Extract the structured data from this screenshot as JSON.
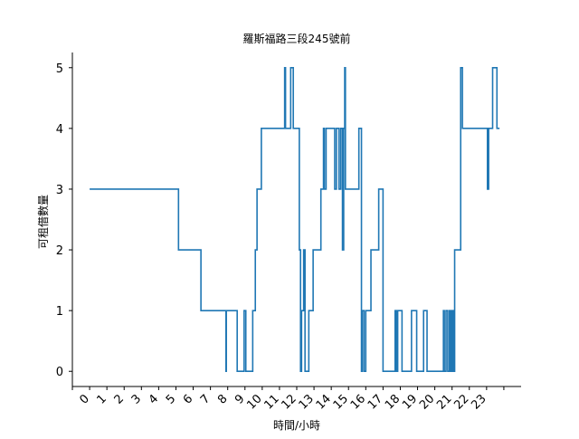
{
  "chart_data": {
    "type": "line",
    "title": "羅斯福路三段245號前",
    "xlabel": "時間/小時",
    "ylabel": "可租借數量",
    "xlim": [
      -1,
      25
    ],
    "ylim": [
      -0.25,
      5.25
    ],
    "x_ticks": [
      0,
      1,
      2,
      3,
      4,
      5,
      6,
      7,
      8,
      9,
      10,
      11,
      12,
      13,
      14,
      15,
      16,
      17,
      18,
      19,
      20,
      21,
      22,
      23
    ],
    "x_tick_labels": [
      "0",
      "1",
      "2",
      "3",
      "4",
      "5",
      "6",
      "7",
      "8",
      "9",
      "10",
      "11",
      "12",
      "13",
      "14",
      "15",
      "16",
      "17",
      "18",
      "19",
      "20",
      "21",
      "22",
      "23"
    ],
    "x_ticks_unlabeled": [
      -1,
      24
    ],
    "y_ticks": [
      0,
      1,
      2,
      3,
      4,
      5
    ],
    "y_tick_labels": [
      "0",
      "1",
      "2",
      "3",
      "4",
      "5"
    ],
    "grid": false,
    "series": [
      {
        "color": "#1f77b4",
        "step": "post",
        "points": [
          [
            0.0,
            3
          ],
          [
            5.15,
            3
          ],
          [
            5.15,
            2
          ],
          [
            6.45,
            2
          ],
          [
            6.45,
            1
          ],
          [
            7.9,
            1
          ],
          [
            7.9,
            0
          ],
          [
            7.92,
            0
          ],
          [
            7.92,
            1
          ],
          [
            8.55,
            1
          ],
          [
            8.55,
            0
          ],
          [
            8.95,
            0
          ],
          [
            8.95,
            1
          ],
          [
            9.05,
            1
          ],
          [
            9.05,
            0
          ],
          [
            9.45,
            0
          ],
          [
            9.45,
            1
          ],
          [
            9.6,
            1
          ],
          [
            9.6,
            2
          ],
          [
            9.7,
            2
          ],
          [
            9.7,
            3
          ],
          [
            9.95,
            3
          ],
          [
            9.95,
            4
          ],
          [
            11.3,
            4
          ],
          [
            11.3,
            5
          ],
          [
            11.35,
            5
          ],
          [
            11.35,
            4
          ],
          [
            11.65,
            4
          ],
          [
            11.65,
            5
          ],
          [
            11.8,
            5
          ],
          [
            11.8,
            4
          ],
          [
            12.15,
            4
          ],
          [
            12.15,
            2
          ],
          [
            12.22,
            2
          ],
          [
            12.22,
            0
          ],
          [
            12.28,
            0
          ],
          [
            12.28,
            1
          ],
          [
            12.4,
            1
          ],
          [
            12.4,
            2
          ],
          [
            12.48,
            2
          ],
          [
            12.48,
            0
          ],
          [
            12.7,
            0
          ],
          [
            12.7,
            1
          ],
          [
            12.95,
            1
          ],
          [
            12.95,
            2
          ],
          [
            13.4,
            2
          ],
          [
            13.4,
            3
          ],
          [
            13.55,
            3
          ],
          [
            13.55,
            4
          ],
          [
            13.6,
            4
          ],
          [
            13.6,
            3
          ],
          [
            13.7,
            3
          ],
          [
            13.7,
            4
          ],
          [
            14.2,
            4
          ],
          [
            14.2,
            3
          ],
          [
            14.3,
            3
          ],
          [
            14.3,
            4
          ],
          [
            14.45,
            4
          ],
          [
            14.45,
            3
          ],
          [
            14.55,
            3
          ],
          [
            14.55,
            4
          ],
          [
            14.65,
            4
          ],
          [
            14.65,
            2
          ],
          [
            14.72,
            2
          ],
          [
            14.72,
            4
          ],
          [
            14.78,
            4
          ],
          [
            14.78,
            5
          ],
          [
            14.82,
            5
          ],
          [
            14.82,
            3
          ],
          [
            15.6,
            3
          ],
          [
            15.6,
            4
          ],
          [
            15.75,
            4
          ],
          [
            15.75,
            0
          ],
          [
            15.8,
            0
          ],
          [
            15.8,
            1
          ],
          [
            15.9,
            1
          ],
          [
            15.9,
            0
          ],
          [
            16.0,
            0
          ],
          [
            16.0,
            1
          ],
          [
            16.3,
            1
          ],
          [
            16.3,
            2
          ],
          [
            16.75,
            2
          ],
          [
            16.75,
            3
          ],
          [
            17.0,
            3
          ],
          [
            17.0,
            0
          ],
          [
            17.7,
            0
          ],
          [
            17.7,
            1
          ],
          [
            17.78,
            1
          ],
          [
            17.78,
            0
          ],
          [
            17.85,
            0
          ],
          [
            17.85,
            1
          ],
          [
            18.1,
            1
          ],
          [
            18.1,
            0
          ],
          [
            18.65,
            0
          ],
          [
            18.65,
            1
          ],
          [
            18.95,
            1
          ],
          [
            18.95,
            0
          ],
          [
            19.35,
            0
          ],
          [
            19.35,
            1
          ],
          [
            19.55,
            1
          ],
          [
            19.55,
            0
          ],
          [
            20.5,
            0
          ],
          [
            20.5,
            1
          ],
          [
            20.55,
            1
          ],
          [
            20.55,
            0
          ],
          [
            20.65,
            0
          ],
          [
            20.65,
            1
          ],
          [
            20.75,
            1
          ],
          [
            20.75,
            0
          ],
          [
            20.85,
            0
          ],
          [
            20.85,
            1
          ],
          [
            20.92,
            1
          ],
          [
            20.92,
            0
          ],
          [
            21.0,
            0
          ],
          [
            21.0,
            1
          ],
          [
            21.08,
            1
          ],
          [
            21.08,
            0
          ],
          [
            21.15,
            0
          ],
          [
            21.15,
            2
          ],
          [
            21.5,
            2
          ],
          [
            21.5,
            5
          ],
          [
            21.6,
            5
          ],
          [
            21.6,
            4
          ],
          [
            23.05,
            4
          ],
          [
            23.05,
            3
          ],
          [
            23.12,
            3
          ],
          [
            23.12,
            4
          ],
          [
            23.35,
            4
          ],
          [
            23.35,
            5
          ],
          [
            23.6,
            5
          ],
          [
            23.6,
            4
          ],
          [
            23.75,
            4
          ]
        ]
      }
    ]
  }
}
